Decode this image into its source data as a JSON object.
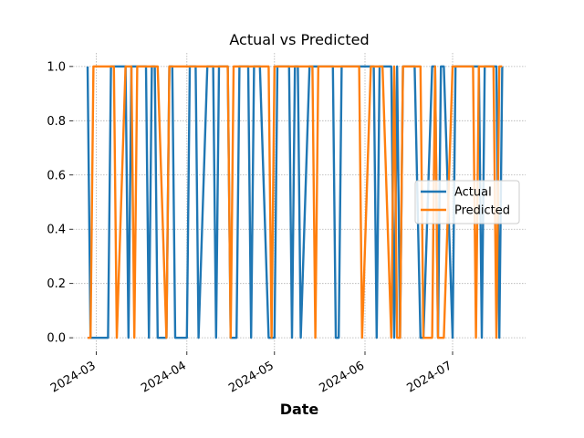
{
  "chart_data": {
    "type": "line",
    "title": "Actual vs Predicted",
    "xlabel": "Date",
    "ylabel": "",
    "x_axis_type": "date",
    "xlim": [
      "2024-02-22",
      "2024-07-26"
    ],
    "ylim": [
      -0.05,
      1.05
    ],
    "y_ticks": [
      0.0,
      0.2,
      0.4,
      0.6,
      0.8,
      1.0
    ],
    "y_tick_labels": [
      "0.0",
      "0.2",
      "0.4",
      "0.6",
      "0.8",
      "1.0"
    ],
    "x_ticks": [
      "2024-03-01",
      "2024-04-01",
      "2024-05-01",
      "2024-06-01",
      "2024-07-01"
    ],
    "x_tick_labels": [
      "2024-03",
      "2024-04",
      "2024-05",
      "2024-06",
      "2024-07"
    ],
    "grid": true,
    "legend_position": "center-right",
    "series": [
      {
        "name": "Actual",
        "color": "#1f77b4",
        "x": [
          "2024-02-27",
          "2024-02-28",
          "2024-02-29",
          "2024-03-01",
          "2024-03-04",
          "2024-03-05",
          "2024-03-06",
          "2024-03-07",
          "2024-03-08",
          "2024-03-11",
          "2024-03-12",
          "2024-03-13",
          "2024-03-14",
          "2024-03-15",
          "2024-03-18",
          "2024-03-19",
          "2024-03-20",
          "2024-03-21",
          "2024-03-22",
          "2024-03-25",
          "2024-03-26",
          "2024-03-27",
          "2024-03-28",
          "2024-04-01",
          "2024-04-02",
          "2024-04-03",
          "2024-04-04",
          "2024-04-05",
          "2024-04-08",
          "2024-04-09",
          "2024-04-10",
          "2024-04-11",
          "2024-04-12",
          "2024-04-15",
          "2024-04-16",
          "2024-04-17",
          "2024-04-18",
          "2024-04-19",
          "2024-04-22",
          "2024-04-23",
          "2024-04-24",
          "2024-04-25",
          "2024-04-26",
          "2024-04-29",
          "2024-04-30",
          "2024-05-01",
          "2024-05-02",
          "2024-05-03",
          "2024-05-06",
          "2024-05-07",
          "2024-05-08",
          "2024-05-09",
          "2024-05-10",
          "2024-05-13",
          "2024-05-14",
          "2024-05-15",
          "2024-05-16",
          "2024-05-17",
          "2024-05-20",
          "2024-05-21",
          "2024-05-22",
          "2024-05-23",
          "2024-05-24",
          "2024-05-28",
          "2024-05-29",
          "2024-05-30",
          "2024-05-31",
          "2024-06-03",
          "2024-06-04",
          "2024-06-05",
          "2024-06-06",
          "2024-06-07",
          "2024-06-10",
          "2024-06-11",
          "2024-06-12",
          "2024-06-13",
          "2024-06-14",
          "2024-06-17",
          "2024-06-18",
          "2024-06-20",
          "2024-06-21",
          "2024-06-24",
          "2024-06-25",
          "2024-06-26",
          "2024-06-27",
          "2024-06-28",
          "2024-07-01",
          "2024-07-02",
          "2024-07-03",
          "2024-07-05",
          "2024-07-08",
          "2024-07-09",
          "2024-07-10",
          "2024-07-11",
          "2024-07-12",
          "2024-07-15",
          "2024-07-16",
          "2024-07-17",
          "2024-07-18"
        ],
        "values": [
          1,
          0,
          0,
          0,
          0,
          0,
          1,
          1,
          1,
          1,
          0,
          1,
          1,
          1,
          1,
          0,
          1,
          1,
          0,
          0,
          1,
          1,
          0,
          0,
          1,
          1,
          1,
          0,
          1,
          1,
          1,
          0,
          1,
          1,
          0,
          0,
          0,
          1,
          1,
          0,
          1,
          1,
          1,
          0,
          0,
          0,
          1,
          1,
          1,
          0,
          1,
          1,
          0,
          1,
          1,
          1,
          1,
          1,
          1,
          1,
          0,
          0,
          1,
          1,
          1,
          1,
          1,
          1,
          1,
          0,
          1,
          1,
          1,
          0,
          1,
          0,
          1,
          1,
          1,
          0,
          0,
          1,
          1,
          0,
          1,
          1,
          0,
          1,
          1,
          1,
          1,
          1,
          1,
          0,
          1,
          1,
          1,
          0,
          1
        ]
      },
      {
        "name": "Predicted",
        "color": "#ff7f0e",
        "x": [
          "2024-02-27",
          "2024-02-28",
          "2024-02-29",
          "2024-03-01",
          "2024-03-04",
          "2024-03-05",
          "2024-03-06",
          "2024-03-07",
          "2024-03-08",
          "2024-03-11",
          "2024-03-12",
          "2024-03-13",
          "2024-03-14",
          "2024-03-15",
          "2024-03-18",
          "2024-03-19",
          "2024-03-20",
          "2024-03-21",
          "2024-03-22",
          "2024-03-25",
          "2024-03-26",
          "2024-03-27",
          "2024-03-28",
          "2024-04-01",
          "2024-04-02",
          "2024-04-03",
          "2024-04-04",
          "2024-04-05",
          "2024-04-08",
          "2024-04-09",
          "2024-04-10",
          "2024-04-11",
          "2024-04-12",
          "2024-04-15",
          "2024-04-16",
          "2024-04-17",
          "2024-04-18",
          "2024-04-19",
          "2024-04-22",
          "2024-04-23",
          "2024-04-24",
          "2024-04-25",
          "2024-04-26",
          "2024-04-29",
          "2024-04-30",
          "2024-05-01",
          "2024-05-02",
          "2024-05-03",
          "2024-05-06",
          "2024-05-07",
          "2024-05-08",
          "2024-05-09",
          "2024-05-10",
          "2024-05-13",
          "2024-05-14",
          "2024-05-15",
          "2024-05-16",
          "2024-05-17",
          "2024-05-20",
          "2024-05-21",
          "2024-05-22",
          "2024-05-23",
          "2024-05-24",
          "2024-05-28",
          "2024-05-29",
          "2024-05-30",
          "2024-05-31",
          "2024-06-03",
          "2024-06-04",
          "2024-06-05",
          "2024-06-06",
          "2024-06-07",
          "2024-06-10",
          "2024-06-11",
          "2024-06-12",
          "2024-06-13",
          "2024-06-14",
          "2024-06-17",
          "2024-06-18",
          "2024-06-20",
          "2024-06-21",
          "2024-06-24",
          "2024-06-25",
          "2024-06-26",
          "2024-06-27",
          "2024-06-28",
          "2024-07-01",
          "2024-07-02",
          "2024-07-03",
          "2024-07-05",
          "2024-07-08",
          "2024-07-09",
          "2024-07-10",
          "2024-07-11",
          "2024-07-12",
          "2024-07-15",
          "2024-07-16",
          "2024-07-17",
          "2024-07-18"
        ],
        "values": [
          0,
          0,
          1,
          1,
          1,
          1,
          1,
          1,
          0,
          1,
          1,
          1,
          0,
          1,
          1,
          1,
          1,
          1,
          1,
          0,
          1,
          1,
          1,
          1,
          1,
          1,
          1,
          1,
          1,
          1,
          1,
          1,
          1,
          1,
          0,
          1,
          1,
          1,
          1,
          1,
          1,
          1,
          1,
          1,
          0,
          1,
          1,
          1,
          1,
          1,
          1,
          1,
          1,
          1,
          1,
          0,
          1,
          1,
          1,
          1,
          1,
          1,
          1,
          1,
          1,
          1,
          0,
          1,
          1,
          1,
          1,
          1,
          0,
          1,
          0,
          0,
          1,
          1,
          1,
          1,
          0,
          0,
          1,
          0,
          0,
          0,
          1,
          1,
          1,
          1,
          1,
          0,
          1,
          1,
          1,
          1,
          0,
          1,
          1
        ]
      }
    ]
  }
}
